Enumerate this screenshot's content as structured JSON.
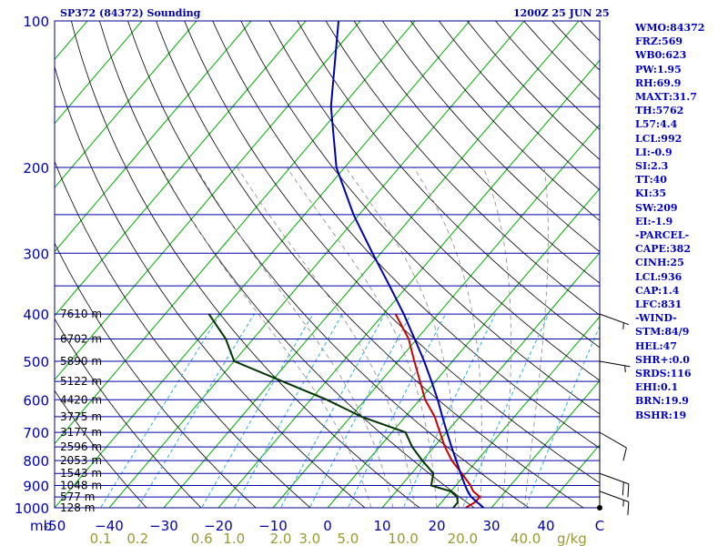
{
  "header": {
    "station_title": "SP372 (84372) Sounding",
    "valid_time": "1200Z 25 JUN 25"
  },
  "colors": {
    "frame": "#000088",
    "isobar": "#0000aa",
    "isotherm": "#00aa00",
    "dry_adiabat": "#000000",
    "moist_adiabat": "#888888",
    "mixing_ratio": "#33aadd",
    "temperature": "#cc0000",
    "dewpoint": "#003300",
    "parcel": "#0000aa",
    "wind": "#000000",
    "axis_text": "#0000aa",
    "mixing_text": "#999933"
  },
  "stats": [
    "WMO:84372",
    "FRZ:569",
    "WB0:623",
    "PW:1.95",
    "RH:69.9",
    "MAXT:31.7",
    "TH:5762",
    "L57:4.4",
    "LCL:992",
    "LI:-0.9",
    "SI:2.3",
    "TT:40",
    "KI:35",
    "SW:209",
    "EI:-1.9",
    "-PARCEL-",
    "CAPE:382",
    "CINH:25",
    "LCL:936",
    "CAP:1.4",
    "LFC:831",
    "-WIND-",
    "STM:84/9",
    "HEL:47",
    "SHR+:0.0",
    "SRDS:116",
    "EHI:0.1",
    "BRN:19.9",
    "BSHR:19"
  ],
  "chart_data": {
    "type": "line",
    "pressure_axis": {
      "unit_label": "mb",
      "ticks": [
        100,
        200,
        300,
        400,
        500,
        600,
        700,
        800,
        900,
        1000
      ],
      "isobars": [
        100,
        150,
        200,
        250,
        300,
        350,
        400,
        450,
        500,
        550,
        600,
        650,
        700,
        750,
        800,
        850,
        900,
        950,
        1000
      ],
      "range": [
        100,
        1000
      ],
      "log": true
    },
    "temperature_axis": {
      "tick_values": [
        -50,
        -40,
        -30,
        -20,
        -10,
        0,
        10,
        20,
        30,
        40
      ],
      "tick_labels": [
        "-50",
        "−40",
        "−30",
        "−20",
        "−10",
        "0",
        "10",
        "20",
        "30",
        "40"
      ],
      "end_label": "C",
      "range": [
        -50,
        50
      ],
      "skew_degrees_per_decade": 76
    },
    "mixing_ratio_axis": {
      "values": [
        0.1,
        0.2,
        0.6,
        1.0,
        2.0,
        3.0,
        5.0,
        10.0,
        20.0,
        40.0
      ],
      "labels": [
        "0.1",
        "0.2",
        "0.6",
        "1.0",
        "2.0",
        "3.0",
        "5.0",
        "10.0",
        "20.0",
        "40.0"
      ],
      "end_label": "g/kg"
    },
    "height_labels": [
      {
        "p": 400,
        "label": "7610 m"
      },
      {
        "p": 450,
        "label": "6702 m"
      },
      {
        "p": 500,
        "label": "5890 m"
      },
      {
        "p": 550,
        "label": "5122 m"
      },
      {
        "p": 600,
        "label": "4420 m"
      },
      {
        "p": 650,
        "label": "3775 m"
      },
      {
        "p": 700,
        "label": "3177 m"
      },
      {
        "p": 750,
        "label": "2596 m"
      },
      {
        "p": 800,
        "label": "2053 m"
      },
      {
        "p": 850,
        "label": "1543 m"
      },
      {
        "p": 900,
        "label": "1048 m"
      },
      {
        "p": 950,
        "label": "577 m"
      },
      {
        "p": 1000,
        "label": "128 m"
      }
    ],
    "series": [
      {
        "key": "temperature",
        "points": [
          {
            "p": 1000,
            "t": 25.3
          },
          {
            "p": 975,
            "t": 26.1
          },
          {
            "p": 950,
            "t": 26.2
          },
          {
            "p": 925,
            "t": 24.1
          },
          {
            "p": 900,
            "t": 22.7
          },
          {
            "p": 850,
            "t": 19.2
          },
          {
            "p": 800,
            "t": 15.4
          },
          {
            "p": 750,
            "t": 12.0
          },
          {
            "p": 700,
            "t": 8.8
          },
          {
            "p": 650,
            "t": 5.4
          },
          {
            "p": 600,
            "t": 1.0
          },
          {
            "p": 550,
            "t": -2.8
          },
          {
            "p": 500,
            "t": -7.0
          },
          {
            "p": 450,
            "t": -11.5
          },
          {
            "p": 400,
            "t": -17.8
          }
        ]
      },
      {
        "key": "dewpoint",
        "points": [
          {
            "p": 1000,
            "t": 23.0
          },
          {
            "p": 975,
            "t": 23.0
          },
          {
            "p": 950,
            "t": 22.0
          },
          {
            "p": 925,
            "t": 20.0
          },
          {
            "p": 900,
            "t": 15.5
          },
          {
            "p": 850,
            "t": 14.0
          },
          {
            "p": 800,
            "t": 10.0
          },
          {
            "p": 750,
            "t": 6.0
          },
          {
            "p": 700,
            "t": 2.5
          },
          {
            "p": 650,
            "t": -8.0
          },
          {
            "p": 600,
            "t": -17.0
          },
          {
            "p": 550,
            "t": -28.0
          },
          {
            "p": 500,
            "t": -40.0
          },
          {
            "p": 450,
            "t": -45.0
          },
          {
            "p": 400,
            "t": -52.0
          }
        ]
      },
      {
        "key": "parcel",
        "points": [
          {
            "p": 1000,
            "t": 28.6
          },
          {
            "p": 975,
            "t": 26.6
          },
          {
            "p": 950,
            "t": 24.6
          },
          {
            "p": 925,
            "t": 23.1
          },
          {
            "p": 900,
            "t": 21.7
          },
          {
            "p": 850,
            "t": 19.0
          },
          {
            "p": 800,
            "t": 16.2
          },
          {
            "p": 750,
            "t": 13.2
          },
          {
            "p": 700,
            "t": 10.1
          },
          {
            "p": 650,
            "t": 6.8
          },
          {
            "p": 600,
            "t": 3.3
          },
          {
            "p": 550,
            "t": -0.7
          },
          {
            "p": 500,
            "t": -5.2
          },
          {
            "p": 450,
            "t": -10.4
          },
          {
            "p": 400,
            "t": -16.3
          },
          {
            "p": 350,
            "t": -23.3
          },
          {
            "p": 300,
            "t": -31.5
          },
          {
            "p": 250,
            "t": -41.0
          },
          {
            "p": 200,
            "t": -51.5
          },
          {
            "p": 150,
            "t": -62.0
          },
          {
            "p": 100,
            "t": -74.0
          }
        ]
      }
    ],
    "wind_barbs": [
      {
        "p": 1000,
        "dir": 0,
        "speed": 0
      },
      {
        "p": 925,
        "dir": 110,
        "speed": 15
      },
      {
        "p": 850,
        "dir": 110,
        "speed": 20
      },
      {
        "p": 700,
        "dir": 120,
        "speed": 10
      },
      {
        "p": 500,
        "dir": 100,
        "speed": 5
      },
      {
        "p": 400,
        "dir": 110,
        "speed": 5
      }
    ]
  }
}
